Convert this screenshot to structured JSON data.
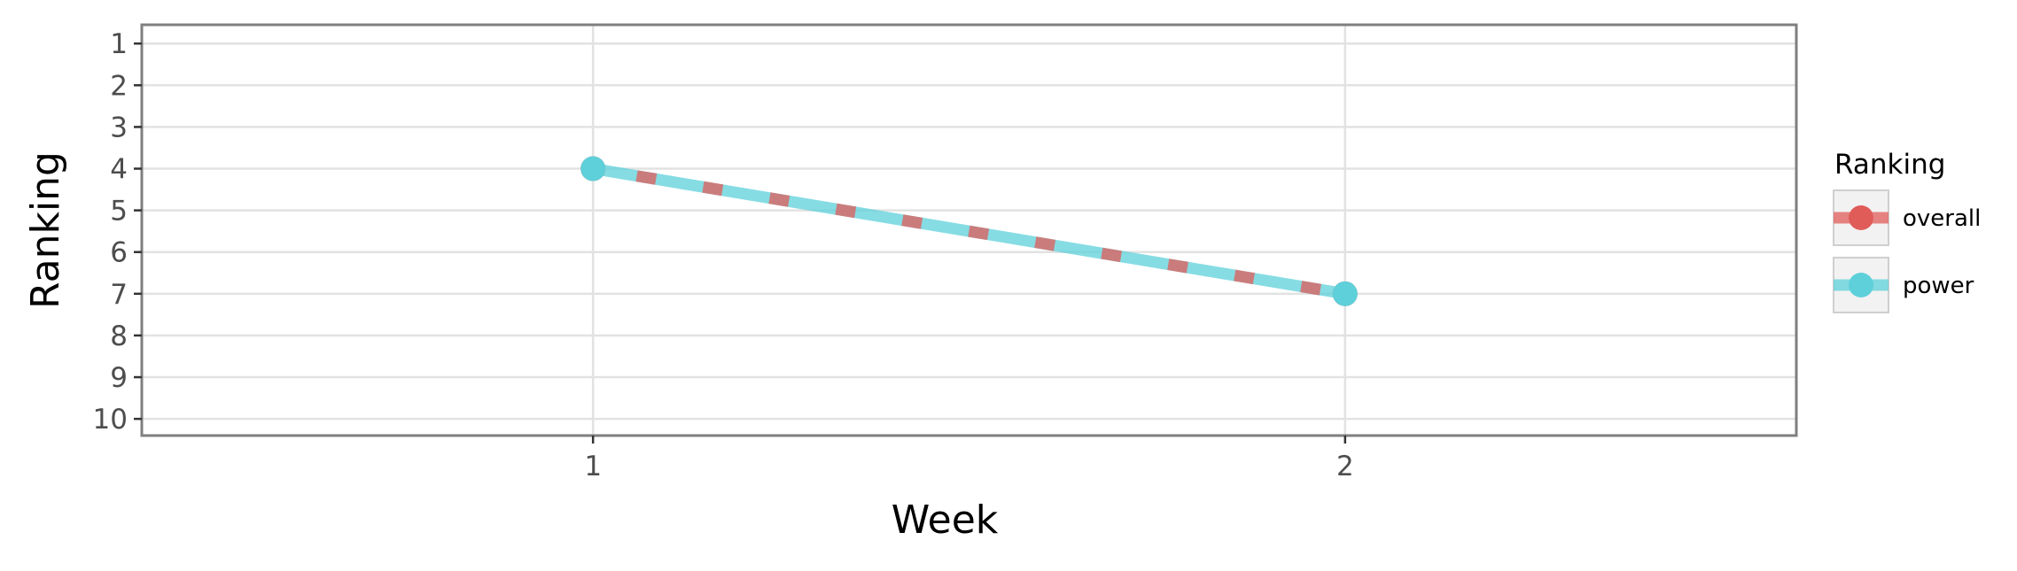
{
  "chart_data": {
    "type": "line",
    "xlabel": "Week",
    "ylabel": "Ranking",
    "x": [
      1,
      2
    ],
    "x_ticks": [
      "1",
      "2"
    ],
    "xlim": [
      0.4,
      2.6
    ],
    "y_ticks": [
      "1",
      "2",
      "3",
      "4",
      "5",
      "6",
      "7",
      "8",
      "9",
      "10"
    ],
    "ylim": [
      10.4,
      0.55
    ],
    "y_reversed": true,
    "grid": true,
    "legend": {
      "title": "Ranking",
      "placement": "right"
    },
    "series": [
      {
        "name": "overall",
        "values": [
          4,
          7
        ],
        "color": "#E05C59",
        "linestyle": "dashed"
      },
      {
        "name": "power",
        "values": [
          4,
          7
        ],
        "color": "#5ED0DA",
        "linestyle": "solid"
      }
    ]
  }
}
